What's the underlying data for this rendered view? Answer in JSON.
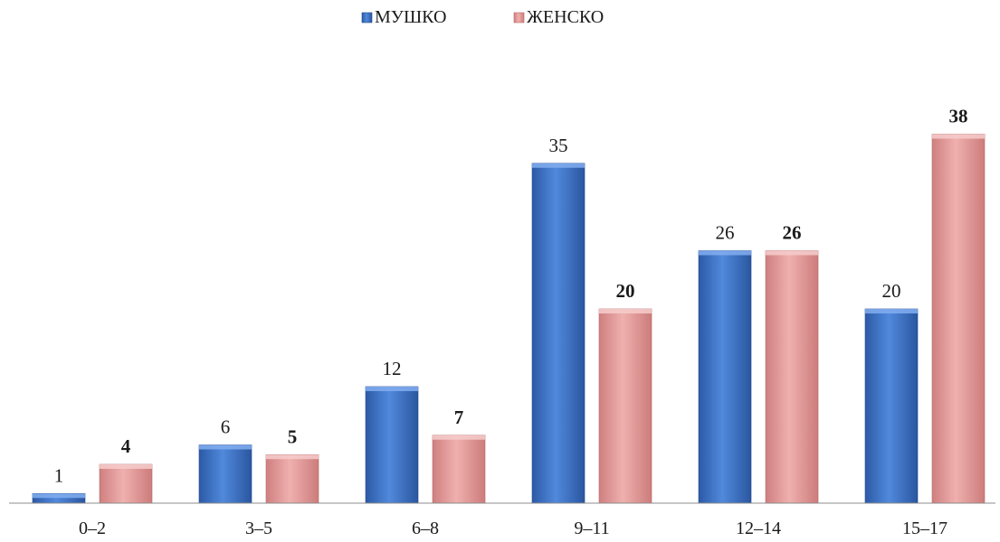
{
  "chart_data": {
    "type": "bar",
    "categories": [
      "0–2",
      "3–5",
      "6–8",
      "9–11",
      "12–14",
      "15–17"
    ],
    "series": [
      {
        "name": "МУШКО",
        "values": [
          1,
          6,
          12,
          35,
          26,
          20
        ],
        "color": "#3f74c7",
        "label_bold": false
      },
      {
        "name": "ЖЕНСКО",
        "values": [
          4,
          5,
          7,
          20,
          26,
          38
        ],
        "color": "#e39a99",
        "label_bold": true
      }
    ],
    "ylim": [
      0,
      40
    ],
    "grid": false,
    "legend_position": "top-center"
  }
}
